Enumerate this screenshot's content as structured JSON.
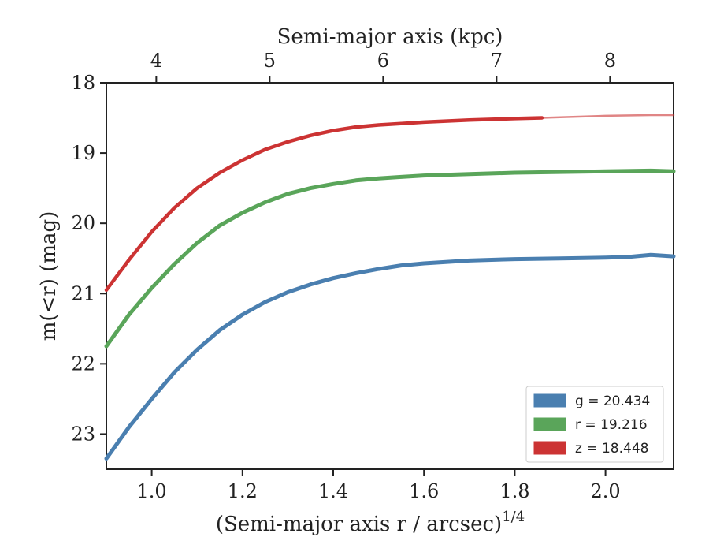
{
  "chart_data": {
    "type": "line",
    "title": "",
    "xlabel_bottom": "(Semi-major axis r / arcsec)",
    "xlabel_bottom_exponent": "1/4",
    "xlabel_top": "Semi-major axis (kpc)",
    "ylabel": "m(<r) (mag)",
    "xlim": [
      0.9,
      2.15
    ],
    "ylim": [
      23.5,
      18.0
    ],
    "x_ticks": [
      1.0,
      1.2,
      1.4,
      1.6,
      1.8,
      2.0
    ],
    "x_tick_labels": [
      "1.0",
      "1.2",
      "1.4",
      "1.6",
      "1.8",
      "2.0"
    ],
    "y_ticks": [
      18,
      19,
      20,
      21,
      22,
      23
    ],
    "y_tick_labels": [
      "18",
      "19",
      "20",
      "21",
      "22",
      "23"
    ],
    "top_ticks_at_bottom_x": [
      1.01,
      1.26,
      1.51,
      1.76,
      2.01
    ],
    "top_tick_labels": [
      "4",
      "5",
      "6",
      "7",
      "8"
    ],
    "grid": false,
    "legend_position": "lower-right",
    "series": [
      {
        "name": "g = 20.434",
        "color": "#4a7fb0",
        "x": [
          0.9,
          0.95,
          1.0,
          1.05,
          1.1,
          1.15,
          1.2,
          1.25,
          1.3,
          1.35,
          1.4,
          1.45,
          1.5,
          1.55,
          1.6,
          1.7,
          1.8,
          1.9,
          2.0,
          2.05,
          2.1,
          2.15
        ],
        "y": [
          23.35,
          22.9,
          22.5,
          22.12,
          21.8,
          21.52,
          21.3,
          21.12,
          20.98,
          20.87,
          20.78,
          20.71,
          20.65,
          20.6,
          20.57,
          20.53,
          20.51,
          20.5,
          20.49,
          20.48,
          20.45,
          20.47
        ]
      },
      {
        "name": "r = 19.216",
        "color": "#5aa55a",
        "x": [
          0.9,
          0.95,
          1.0,
          1.05,
          1.1,
          1.15,
          1.2,
          1.25,
          1.3,
          1.35,
          1.4,
          1.45,
          1.5,
          1.55,
          1.6,
          1.7,
          1.8,
          1.9,
          2.0,
          2.1,
          2.15
        ],
        "y": [
          21.75,
          21.3,
          20.92,
          20.58,
          20.28,
          20.03,
          19.85,
          19.7,
          19.58,
          19.5,
          19.44,
          19.39,
          19.36,
          19.34,
          19.32,
          19.3,
          19.28,
          19.27,
          19.26,
          19.25,
          19.26
        ]
      },
      {
        "name": "z = 18.448",
        "color": "#cc3333",
        "x": [
          0.9,
          0.95,
          1.0,
          1.05,
          1.1,
          1.15,
          1.2,
          1.25,
          1.3,
          1.35,
          1.4,
          1.45,
          1.5,
          1.55,
          1.6,
          1.7,
          1.8,
          1.86,
          1.9,
          2.0,
          2.1,
          2.15
        ],
        "y": [
          20.95,
          20.52,
          20.12,
          19.78,
          19.5,
          19.28,
          19.1,
          18.95,
          18.84,
          18.75,
          18.68,
          18.63,
          18.6,
          18.58,
          18.56,
          18.53,
          18.51,
          18.5,
          18.49,
          18.47,
          18.46,
          18.46
        ],
        "bold_until_x": 1.86
      }
    ]
  }
}
